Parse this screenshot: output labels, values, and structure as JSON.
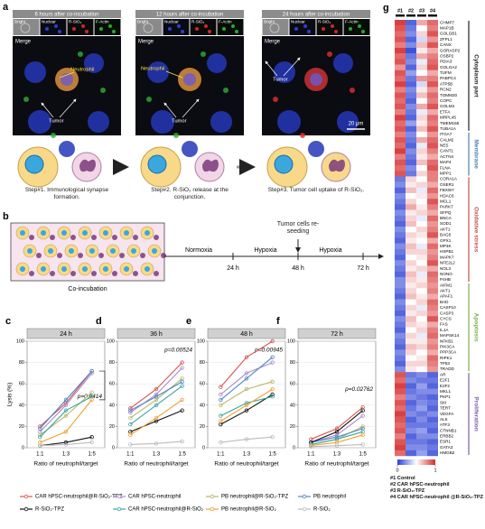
{
  "panel_a": {
    "label": "a",
    "columns": [
      {
        "title": "6 hours after co-incubation",
        "channels": [
          "Bright",
          "Nuclear",
          "R-SiO₂",
          "F-Actin"
        ],
        "merge": "Merge",
        "annotations": [
          "Neutrophil",
          "Tumor"
        ]
      },
      {
        "title": "12 hours after co-incubation",
        "channels": [
          "Bright",
          "Nuclear",
          "R-SiO₂",
          "F-Actin"
        ],
        "merge": "Merge",
        "annotations": [
          "Neutrophil",
          "Tumor"
        ]
      },
      {
        "title": "24 hours after co-incubation",
        "channels": [
          "Bright",
          "Nuclear",
          "R-SiO₂",
          "F-Actin"
        ],
        "merge": "Merge",
        "annotations": [
          "Tumor"
        ]
      }
    ],
    "scale_bar": "20 μm",
    "steps": [
      "Step#1. Immunological synapse formation.",
      "Step#2. R-SiO₂ release at the conjunction.",
      "Step#3. Tumor cell uptake of R-SiO₂."
    ]
  },
  "panel_b": {
    "label": "b",
    "co_incubation": "Co-incubation",
    "phases": [
      "Normoxia",
      "Hypoxia",
      "Hypoxia"
    ],
    "times": [
      "24 h",
      "48 h",
      "72 h"
    ],
    "event": "Tumor cells re-seeding"
  },
  "chart_data": [
    {
      "type": "line",
      "label": "c",
      "title": "24 h",
      "categories": [
        "1:1",
        "1:3",
        "1:5"
      ],
      "ylim": [
        0,
        100
      ],
      "yticks": [
        0,
        20,
        40,
        60,
        80,
        100
      ],
      "xlabel": "Ratio of neutrophil/target",
      "ylabel": "Lysis (%)",
      "annotation": "p=0.0414",
      "series": [
        {
          "name": "CAR hPSC-neutrophil@R-SiO₂-TPZ",
          "color": "#d9534f",
          "values": [
            20,
            42,
            72
          ]
        },
        {
          "name": "CAR hPSC-neutrophil",
          "color": "#a98bc9",
          "values": [
            15,
            40,
            70
          ]
        },
        {
          "name": "PB neutrophil@R-SiO₂-TPZ",
          "color": "#b5b86a",
          "values": [
            12,
            30,
            52
          ]
        },
        {
          "name": "PB neutrophil",
          "color": "#4f86c6",
          "values": [
            18,
            45,
            72
          ]
        },
        {
          "name": "R-SiO₂-TPZ",
          "color": "#111111",
          "values": [
            2,
            5,
            10
          ]
        },
        {
          "name": "CAR hPSC-neutrophil@R-SiO₂",
          "color": "#3aa6a0",
          "values": [
            10,
            35,
            48
          ]
        },
        {
          "name": "PB neutrophil@R-SiO₂",
          "color": "#f0a030",
          "values": [
            5,
            15,
            45
          ]
        },
        {
          "name": "R-SiO₂",
          "color": "#bbbbbb",
          "values": [
            2,
            3,
            5
          ]
        }
      ]
    },
    {
      "type": "line",
      "label": "d",
      "title": "36 h",
      "categories": [
        "1:1",
        "1:3",
        "1:5"
      ],
      "ylim": [
        0,
        100
      ],
      "yticks": [
        0,
        20,
        40,
        60,
        80,
        100
      ],
      "xlabel": "Ratio of neutrophil/target",
      "annotation": "p=0.00524",
      "series": [
        {
          "values": [
            37,
            55,
            80
          ]
        },
        {
          "values": [
            33,
            50,
            75
          ]
        },
        {
          "values": [
            28,
            45,
            65
          ]
        },
        {
          "values": [
            35,
            48,
            62
          ]
        },
        {
          "values": [
            15,
            25,
            35
          ]
        },
        {
          "values": [
            22,
            40,
            58
          ]
        },
        {
          "values": [
            12,
            28,
            45
          ]
        },
        {
          "values": [
            3,
            4,
            6
          ]
        }
      ]
    },
    {
      "type": "line",
      "label": "e",
      "title": "48 h",
      "categories": [
        "1:1",
        "1:3",
        "1:5"
      ],
      "ylim": [
        0,
        100
      ],
      "yticks": [
        0,
        20,
        40,
        60,
        80,
        100
      ],
      "xlabel": "Ratio of neutrophil/target",
      "annotation": "p=0.00945",
      "series": [
        {
          "values": [
            57,
            85,
            100
          ]
        },
        {
          "values": [
            50,
            70,
            80
          ]
        },
        {
          "values": [
            40,
            55,
            62
          ]
        },
        {
          "values": [
            45,
            65,
            85
          ]
        },
        {
          "values": [
            22,
            35,
            50
          ]
        },
        {
          "values": [
            30,
            42,
            48
          ]
        },
        {
          "values": [
            25,
            40,
            55
          ]
        },
        {
          "values": [
            5,
            8,
            10
          ]
        }
      ]
    },
    {
      "type": "line",
      "label": "f",
      "title": "72 h",
      "categories": [
        "1:1",
        "1:3",
        "1:5"
      ],
      "ylim": [
        0,
        100
      ],
      "yticks": [
        0,
        20,
        40,
        60,
        80,
        100
      ],
      "xlabel": "Ratio of neutrophil/target",
      "annotation": "p=0.02762",
      "series": [
        {
          "values": [
            8,
            18,
            38
          ]
        },
        {
          "values": [
            5,
            12,
            30
          ]
        },
        {
          "values": [
            3,
            8,
            20
          ]
        },
        {
          "values": [
            5,
            10,
            18
          ]
        },
        {
          "values": [
            5,
            15,
            35
          ]
        },
        {
          "values": [
            3,
            8,
            15
          ]
        },
        {
          "values": [
            2,
            5,
            12
          ]
        },
        {
          "values": [
            1,
            2,
            3
          ]
        }
      ]
    },
    {
      "type": "heatmap",
      "label": "g",
      "columns": [
        "#1",
        "#2",
        "#3",
        "#4"
      ],
      "groups": [
        "Cytoplasm part",
        "Membrane",
        "Oxidative stress",
        "Apoptosis",
        "Proliferation"
      ],
      "rows": [
        "CHMP7",
        "MAP1B",
        "GOLGB1",
        "ZFPL1",
        "CANX",
        "GORASP2",
        "OSBP2",
        "PDIA3",
        "GOLGA2",
        "TUFM",
        "PABPC4",
        "ATP5B",
        "RCN2",
        "TOMM20",
        "COPC",
        "GOLM4",
        "ETFA",
        "MRPL45",
        "TMEM165",
        "TUBA1A",
        "ITGA7",
        "CALM2",
        "NES",
        "CANT1",
        "ACTN4",
        "MAP4",
        "FLNA",
        "MPP1",
        "CORA1A",
        "OSER1",
        "FBXW7",
        "HDAC6",
        "MCL1",
        "PARK7",
        "SFPQ",
        "BNCA",
        "SOD1",
        "AKT1",
        "BAG5",
        "GPX1",
        "MP3K",
        "HSPB1",
        "MAPK7",
        "NFE2L2",
        "NOL3",
        "NONO",
        "P4HB",
        "AIFM1",
        "AKT1",
        "APAF1",
        "BAD",
        "CASP10",
        "CASP3",
        "CYCS",
        "FAS",
        "IL1A",
        "MAPSK14",
        "NFKB1",
        "PIK3CA",
        "PPP3CA",
        "RIPK1",
        "TP53",
        "TRADD",
        "AR",
        "E2F1",
        "E2F2",
        "MKL1",
        "PKP1",
        "SKI",
        "TERT",
        "VEGFA",
        "ALK",
        "ATF3",
        "CTNNB1",
        "ERBB2",
        "ESR1",
        "GATA3",
        "HMGB2"
      ],
      "values": [
        [
          0.95,
          0.1,
          0.7,
          0.85
        ],
        [
          0.9,
          0.15,
          0.5,
          0.8
        ],
        [
          0.85,
          0.2,
          0.6,
          0.9
        ],
        [
          0.9,
          0.1,
          0.4,
          0.75
        ],
        [
          0.8,
          0.2,
          0.65,
          0.9
        ],
        [
          0.95,
          0.05,
          0.55,
          0.7
        ],
        [
          0.85,
          0.15,
          0.7,
          0.8
        ],
        [
          0.9,
          0.2,
          0.45,
          0.85
        ],
        [
          0.75,
          0.1,
          0.6,
          0.9
        ],
        [
          0.9,
          0.25,
          0.5,
          0.7
        ],
        [
          0.85,
          0.15,
          0.75,
          0.8
        ],
        [
          0.95,
          0.1,
          0.4,
          0.9
        ],
        [
          0.8,
          0.2,
          0.55,
          0.75
        ],
        [
          0.9,
          0.15,
          0.65,
          0.85
        ],
        [
          0.85,
          0.1,
          0.5,
          0.8
        ],
        [
          0.9,
          0.2,
          0.7,
          0.9
        ],
        [
          0.8,
          0.15,
          0.45,
          0.7
        ],
        [
          0.95,
          0.1,
          0.6,
          0.85
        ],
        [
          0.85,
          0.25,
          0.55,
          0.8
        ],
        [
          0.9,
          0.1,
          0.65,
          0.9
        ],
        [
          0.8,
          0.2,
          0.5,
          0.75
        ],
        [
          0.9,
          0.15,
          0.7,
          0.85
        ],
        [
          0.85,
          0.1,
          0.45,
          0.9
        ],
        [
          0.95,
          0.2,
          0.6,
          0.8
        ],
        [
          0.8,
          0.15,
          0.55,
          0.7
        ],
        [
          0.9,
          0.1,
          0.65,
          0.85
        ],
        [
          0.85,
          0.2,
          0.5,
          0.9
        ],
        [
          0.9,
          0.15,
          0.6,
          0.8
        ],
        [
          0.15,
          0.6,
          0.5,
          0.8
        ],
        [
          0.2,
          0.55,
          0.6,
          0.7
        ],
        [
          0.1,
          0.65,
          0.45,
          0.85
        ],
        [
          0.2,
          0.5,
          0.55,
          0.75
        ],
        [
          0.15,
          0.6,
          0.5,
          0.9
        ],
        [
          0.1,
          0.7,
          0.55,
          0.8
        ],
        [
          0.2,
          0.55,
          0.6,
          0.7
        ],
        [
          0.15,
          0.6,
          0.45,
          0.85
        ],
        [
          0.1,
          0.65,
          0.5,
          0.75
        ],
        [
          0.2,
          0.5,
          0.6,
          0.8
        ],
        [
          0.15,
          0.6,
          0.55,
          0.9
        ],
        [
          0.1,
          0.55,
          0.5,
          0.7
        ],
        [
          0.2,
          0.65,
          0.45,
          0.85
        ],
        [
          0.15,
          0.6,
          0.6,
          0.75
        ],
        [
          0.1,
          0.5,
          0.55,
          0.8
        ],
        [
          0.2,
          0.6,
          0.5,
          0.9
        ],
        [
          0.15,
          0.55,
          0.6,
          0.7
        ],
        [
          0.1,
          0.65,
          0.45,
          0.85
        ],
        [
          0.2,
          0.6,
          0.55,
          0.8
        ],
        [
          0.2,
          0.55,
          0.6,
          0.75
        ],
        [
          0.15,
          0.6,
          0.5,
          0.8
        ],
        [
          0.1,
          0.65,
          0.55,
          0.7
        ],
        [
          0.2,
          0.5,
          0.6,
          0.85
        ],
        [
          0.15,
          0.6,
          0.45,
          0.8
        ],
        [
          0.1,
          0.55,
          0.6,
          0.75
        ],
        [
          0.2,
          0.65,
          0.5,
          0.9
        ],
        [
          0.15,
          0.6,
          0.55,
          0.7
        ],
        [
          0.1,
          0.5,
          0.6,
          0.8
        ],
        [
          0.2,
          0.6,
          0.45,
          0.85
        ],
        [
          0.15,
          0.55,
          0.55,
          0.75
        ],
        [
          0.1,
          0.65,
          0.6,
          0.8
        ],
        [
          0.2,
          0.6,
          0.5,
          0.7
        ],
        [
          0.15,
          0.5,
          0.55,
          0.85
        ],
        [
          0.1,
          0.6,
          0.6,
          0.8
        ],
        [
          0.2,
          0.55,
          0.5,
          0.75
        ],
        [
          0.9,
          0.15,
          0.2,
          0.1
        ],
        [
          0.85,
          0.2,
          0.15,
          0.15
        ],
        [
          0.95,
          0.1,
          0.25,
          0.1
        ],
        [
          0.9,
          0.15,
          0.2,
          0.2
        ],
        [
          0.8,
          0.2,
          0.15,
          0.1
        ],
        [
          0.9,
          0.1,
          0.2,
          0.15
        ],
        [
          0.85,
          0.15,
          0.25,
          0.1
        ],
        [
          0.95,
          0.2,
          0.15,
          0.2
        ],
        [
          0.9,
          0.1,
          0.2,
          0.1
        ],
        [
          0.85,
          0.15,
          0.15,
          0.15
        ],
        [
          0.9,
          0.2,
          0.25,
          0.1
        ],
        [
          0.8,
          0.1,
          0.2,
          0.2
        ],
        [
          0.9,
          0.15,
          0.15,
          0.1
        ],
        [
          0.95,
          0.2,
          0.2,
          0.15
        ],
        [
          0.85,
          0.1,
          0.25,
          0.1
        ]
      ],
      "clim": [
        0,
        1
      ],
      "cticks": [
        0,
        1
      ],
      "legend": [
        "#1 Control",
        "#2 CAR hPSC-neutrophil",
        "#3 R-SiO₂-TPZ",
        "#4 CAR hPSC-neutrophil @R-SiO₂-TPZ"
      ]
    }
  ]
}
